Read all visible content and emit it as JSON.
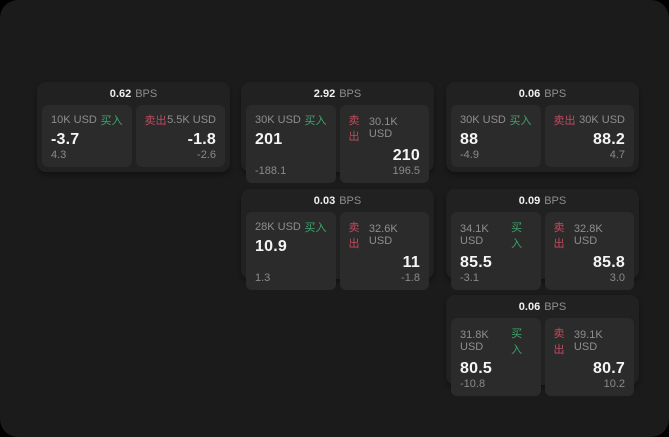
{
  "labels": {
    "bps_unit": "BPS",
    "buy": "买入",
    "sell": "卖出"
  },
  "colors": {
    "page_background": "#000000",
    "window_background": "#1b1b1b",
    "card_background": "#212121",
    "tile_background": "#2b2b2b",
    "buy_green": "#3ea56c",
    "sell_red": "#c24a5e",
    "text_primary": "#f5f5f5",
    "text_secondary": "#8e8e8e"
  },
  "cards": [
    {
      "bps": "0.62",
      "buy": {
        "amount": "10K USD",
        "price": "-3.7",
        "sub": "4.3"
      },
      "sell": {
        "amount": "5.5K USD",
        "price": "-1.8",
        "sub": "-2.6"
      }
    },
    {
      "bps": "2.92",
      "buy": {
        "amount": "30K USD",
        "price": "201",
        "sub": "-188.1"
      },
      "sell": {
        "amount": "30.1K USD",
        "price": "210",
        "sub": "196.5"
      }
    },
    {
      "bps": "0.06",
      "buy": {
        "amount": "30K USD",
        "price": "88",
        "sub": "-4.9"
      },
      "sell": {
        "amount": "30K USD",
        "price": "88.2",
        "sub": "4.7"
      }
    },
    {
      "bps": "0.03",
      "buy": {
        "amount": "28K USD",
        "price": "10.9",
        "sub": "1.3"
      },
      "sell": {
        "amount": "32.6K USD",
        "price": "11",
        "sub": "-1.8"
      }
    },
    {
      "bps": "0.09",
      "buy": {
        "amount": "34.1K USD",
        "price": "85.5",
        "sub": "-3.1"
      },
      "sell": {
        "amount": "32.8K USD",
        "price": "85.8",
        "sub": "3.0"
      }
    },
    {
      "bps": "0.06",
      "buy": {
        "amount": "31.8K USD",
        "price": "80.5",
        "sub": "-10.8"
      },
      "sell": {
        "amount": "39.1K USD",
        "price": "80.7",
        "sub": "10.2"
      }
    }
  ]
}
